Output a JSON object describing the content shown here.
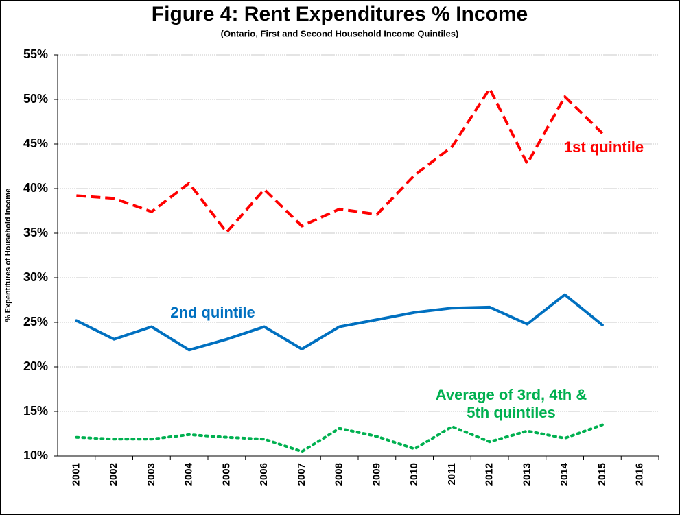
{
  "chart_data": {
    "type": "line",
    "title": "Figure 4: Rent Expenditures % Income",
    "subtitle": "(Ontario, First and Second Household Income Quintiles)",
    "y_label": "% Expentitures of Household Income",
    "categories": [
      "2001",
      "2002",
      "2003",
      "2004",
      "2005",
      "2006",
      "2007",
      "2008",
      "2009",
      "2010",
      "2011",
      "2012",
      "2013",
      "2014",
      "2015",
      "2016"
    ],
    "series": [
      {
        "name": "1st quintile",
        "color": "#ff0000",
        "style": "dashed",
        "values": [
          39.2,
          38.9,
          37.4,
          40.6,
          35.1,
          39.9,
          35.8,
          37.7,
          37.1,
          41.5,
          44.7,
          51.2,
          42.8,
          50.3,
          46.2,
          null
        ]
      },
      {
        "name": "2nd quintile",
        "color": "#0070c0",
        "style": "solid",
        "values": [
          25.2,
          23.1,
          24.5,
          21.9,
          23.1,
          24.5,
          22.0,
          24.5,
          25.3,
          26.1,
          26.6,
          26.7,
          24.8,
          28.1,
          24.7,
          null
        ]
      },
      {
        "name": "Average of 3rd, 4th & 5th quintiles",
        "color": "#00b050",
        "style": "dotted",
        "values": [
          12.1,
          11.9,
          11.9,
          12.4,
          12.1,
          11.9,
          10.5,
          13.1,
          12.2,
          10.8,
          13.3,
          11.6,
          12.8,
          12.0,
          13.5,
          null
        ]
      }
    ],
    "ylim": [
      10,
      55
    ],
    "yticks": [
      {
        "value": 10,
        "label": "10%"
      },
      {
        "value": 15,
        "label": "15%"
      },
      {
        "value": 20,
        "label": "20%"
      },
      {
        "value": 25,
        "label": "25%"
      },
      {
        "value": 30,
        "label": "30%"
      },
      {
        "value": 35,
        "label": "35%"
      },
      {
        "value": 40,
        "label": "40%"
      },
      {
        "value": 45,
        "label": "45%"
      },
      {
        "value": 50,
        "label": "50%"
      },
      {
        "value": 55,
        "label": "55%"
      }
    ],
    "grid": true
  }
}
